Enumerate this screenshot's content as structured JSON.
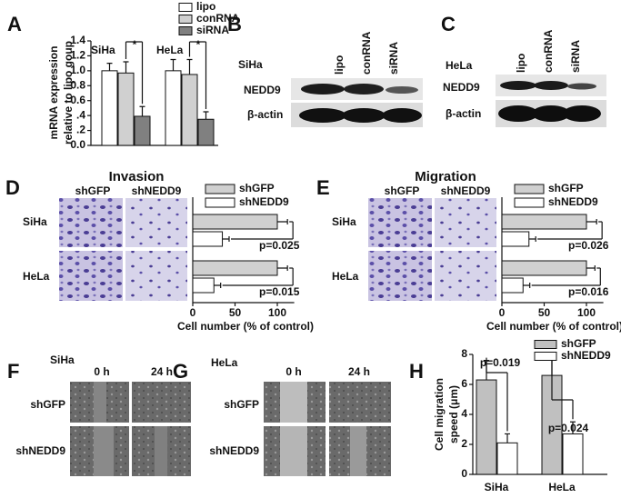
{
  "panel_labels": [
    "A",
    "B",
    "C",
    "D",
    "E",
    "F",
    "G",
    "H"
  ],
  "blot_b": {
    "cell": "SiHa",
    "lanes": [
      "lipo",
      "conRNA",
      "siRNA"
    ],
    "rows": [
      "NEDD9",
      "β-actin"
    ]
  },
  "blot_c": {
    "cell": "HeLa",
    "lanes": [
      "lipo",
      "conRNA",
      "siRNA"
    ],
    "rows": [
      "NEDD9",
      "β-actin"
    ]
  },
  "micro_d": {
    "columns": [
      "shGFP",
      "shNEDD9"
    ]
  },
  "micro_e": {
    "columns": [
      "shGFP",
      "shNEDD9"
    ]
  },
  "scratch_f": {
    "cell": "SiHa",
    "columns": [
      "0 h",
      "24 h"
    ],
    "rows": [
      "shGFP",
      "shNEDD9"
    ]
  },
  "scratch_g": {
    "cell": "HeLa",
    "columns": [
      "0 h",
      "24 h"
    ],
    "rows": [
      "shGFP",
      "shNEDD9"
    ]
  },
  "chart_data": [
    {
      "type": "bar",
      "orientation": "vertical",
      "ylabel": [
        "mRNA expression",
        "relative to lipo goup"
      ],
      "categories": [
        "SiHa",
        "HeLa"
      ],
      "series": [
        {
          "name": "lipo",
          "color": "#ffffff",
          "values": [
            1.0,
            1.0
          ],
          "errors": [
            0.1,
            0.15
          ]
        },
        {
          "name": "conRNA",
          "color": "#d0d0d0",
          "values": [
            0.97,
            0.95
          ],
          "errors": [
            0.15,
            0.2
          ]
        },
        {
          "name": "siRNA",
          "color": "#808080",
          "values": [
            0.39,
            0.35
          ],
          "errors": [
            0.13,
            0.1
          ]
        }
      ],
      "ylim": [
        0,
        1.4
      ],
      "yticks": [
        {
          "value": 0,
          "label": "0.0"
        },
        {
          "value": 0.2,
          "label": ".2"
        },
        {
          "value": 0.4,
          "label": ".4"
        },
        {
          "value": 0.6,
          "label": "0.6"
        },
        {
          "value": 0.8,
          "label": "0.8"
        },
        {
          "value": 1.0,
          "label": "1.0"
        },
        {
          "value": 1.2,
          "label": "1.2"
        },
        1.4
      ],
      "annotations": [
        "*",
        "*"
      ]
    },
    {
      "type": "bar",
      "orientation": "horizontal",
      "title": "Invasion",
      "xlabel": "Cell number (% of control)",
      "categories": [
        "SiHa",
        "HeLa"
      ],
      "series": [
        {
          "name": "shGFP",
          "color": "#d0d0d0",
          "values": [
            100,
            100
          ],
          "errors": [
            12,
            12
          ]
        },
        {
          "name": "shNEDD9",
          "color": "#ffffff",
          "values": [
            35,
            25
          ],
          "errors": [
            8,
            8
          ]
        }
      ],
      "xlim": [
        0,
        120
      ],
      "xticks": [
        0,
        50,
        100
      ],
      "annotations": [
        "p=0.025",
        "p=0.015"
      ]
    },
    {
      "type": "bar",
      "orientation": "horizontal",
      "title": "Migration",
      "xlabel": "Cell number (% of control)",
      "categories": [
        "SiHa",
        "HeLa"
      ],
      "series": [
        {
          "name": "shGFP",
          "color": "#d0d0d0",
          "values": [
            100,
            100
          ],
          "errors": [
            12,
            10
          ]
        },
        {
          "name": "shNEDD9",
          "color": "#ffffff",
          "values": [
            32,
            25
          ],
          "errors": [
            8,
            8
          ]
        }
      ],
      "xlim": [
        0,
        120
      ],
      "xticks": [
        0,
        50,
        100
      ],
      "annotations": [
        "p=0.026",
        "p=0.016"
      ]
    },
    {
      "type": "bar",
      "orientation": "vertical",
      "ylabel": [
        "Cell migration",
        "speed (μm)"
      ],
      "categories": [
        "SiHa",
        "HeLa"
      ],
      "series": [
        {
          "name": "shGFP",
          "color": "#c0c0c0",
          "values": [
            6.3,
            6.6
          ],
          "errors": [
            1.3,
            1.2
          ]
        },
        {
          "name": "shNEDD9",
          "color": "#ffffff",
          "values": [
            2.1,
            2.7
          ],
          "errors": [
            0.6,
            0.8
          ]
        }
      ],
      "ylim": [
        0,
        8
      ],
      "yticks": [
        0,
        2,
        4,
        6,
        8
      ],
      "annotations": [
        "p=0.019",
        "p=0.024"
      ]
    }
  ]
}
